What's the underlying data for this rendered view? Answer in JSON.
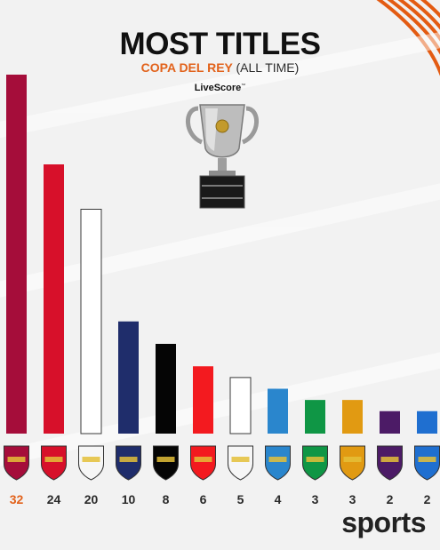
{
  "header": {
    "title": "MOST TITLES",
    "subtitle_main": "COPA DEL REY",
    "subtitle_paren": "(ALL TIME)",
    "brand": "LiveScore",
    "brand_mark": "™"
  },
  "footer": {
    "logo": "sports"
  },
  "chart_data": {
    "type": "bar",
    "title": "MOST TITLES",
    "subtitle": "COPA DEL REY (ALL TIME)",
    "categories": [
      "barcelona-crest",
      "athletic-club-crest",
      "real-madrid-crest",
      "atletico-madrid-crest",
      "valencia-crest",
      "real-zaragoza-crest",
      "sevilla-crest",
      "espanyol-crest",
      "real-betis-crest",
      "real-union-crest",
      "deportivo-crest",
      "real-sociedad-crest"
    ],
    "values": [
      32,
      24,
      20,
      10,
      8,
      6,
      5,
      4,
      3,
      3,
      2,
      2
    ],
    "labels": [
      "32",
      "24",
      "20",
      "10",
      "8",
      "6",
      "5",
      "4",
      "3",
      "3",
      "2",
      "2"
    ],
    "bar_colors": [
      "#a50d3a",
      "#d7102a",
      "#ffffff",
      "#1f2d6b",
      "#050505",
      "#f31a1f",
      "#ffffff",
      "#2a86cd",
      "#0f9645",
      "#e19a12",
      "#4c1b66",
      "#1f6fd0"
    ],
    "highlight_label_color": "#e2621b",
    "label_color": "#2a2a2a",
    "ylim": [
      0,
      32
    ],
    "grid": false,
    "legend": "none"
  }
}
